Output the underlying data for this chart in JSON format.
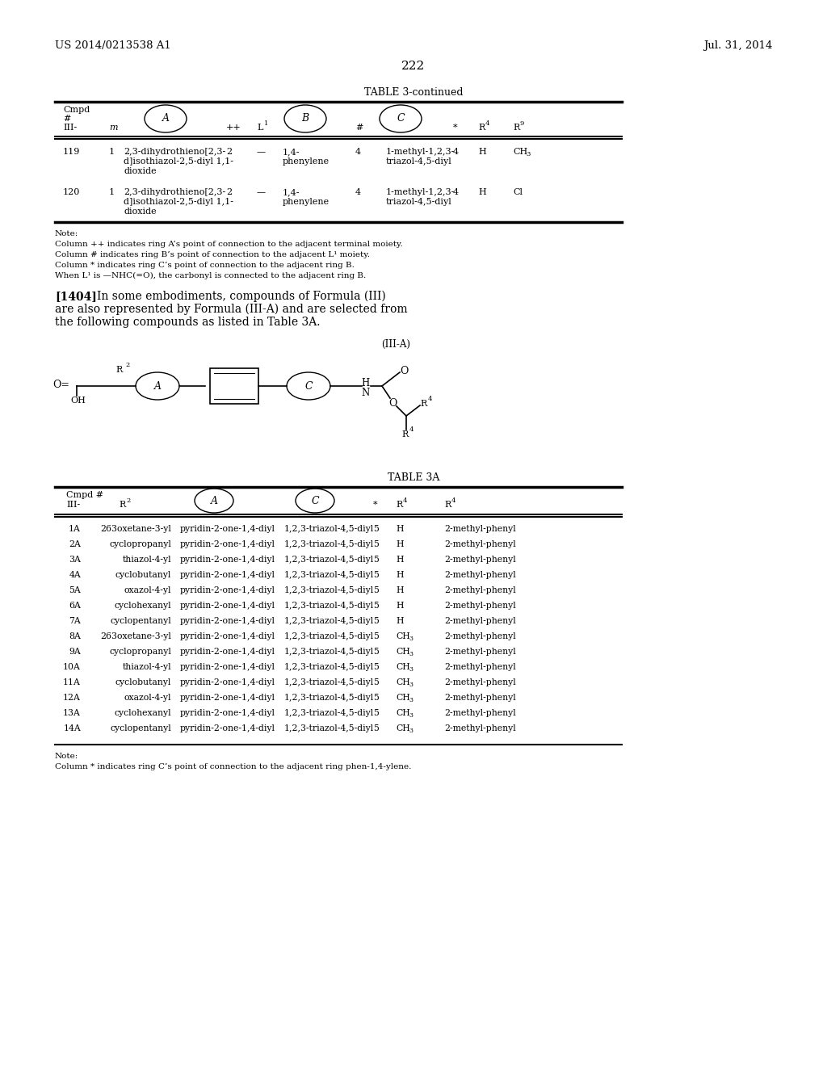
{
  "bg_color": "#ffffff",
  "patent_left": "US 2014/0213538 A1",
  "patent_right": "Jul. 31, 2014",
  "page_number": "222",
  "table3_continued_title": "TABLE 3-continued",
  "table3_notes": [
    "Note:",
    "Column ++ indicates ring A’s point of connection to the adjacent terminal moiety.",
    "Column # indicates ring B’s point of connection to the adjacent L¹ moiety.",
    "Column * indicates ring C’s point of connection to the adjacent ring B.",
    "When L¹ is —NHC(=O), the carbonyl is connected to the adjacent ring B."
  ],
  "para_1404_bold": "[1404]",
  "para_1404_text": "  In some embodiments, compounds of Formula (III)\nare also represented by Formula (III-A) and are selected from\nthe following compounds as listed in Table 3A.",
  "formula_label": "(III-A)",
  "table3a_title": "TABLE 3A",
  "table3a_rows": [
    [
      "1A",
      "263oxetane-3-yl",
      "pyridin-2-one-1,4-diyl",
      "1,2,3-triazol-4,5-diyl",
      "5",
      "H",
      "2-methyl-phenyl"
    ],
    [
      "2A",
      "cyclopropanyl",
      "pyridin-2-one-1,4-diyl",
      "1,2,3-triazol-4,5-diyl",
      "5",
      "H",
      "2-methyl-phenyl"
    ],
    [
      "3A",
      "thiazol-4-yl",
      "pyridin-2-one-1,4-diyl",
      "1,2,3-triazol-4,5-diyl",
      "5",
      "H",
      "2-methyl-phenyl"
    ],
    [
      "4A",
      "cyclobutanyl",
      "pyridin-2-one-1,4-diyl",
      "1,2,3-triazol-4,5-diyl",
      "5",
      "H",
      "2-methyl-phenyl"
    ],
    [
      "5A",
      "oxazol-4-yl",
      "pyridin-2-one-1,4-diyl",
      "1,2,3-triazol-4,5-diyl",
      "5",
      "H",
      "2-methyl-phenyl"
    ],
    [
      "6A",
      "cyclohexanyl",
      "pyridin-2-one-1,4-diyl",
      "1,2,3-triazol-4,5-diyl",
      "5",
      "H",
      "2-methyl-phenyl"
    ],
    [
      "7A",
      "cyclopentanyl",
      "pyridin-2-one-1,4-diyl",
      "1,2,3-triazol-4,5-diyl",
      "5",
      "H",
      "2-methyl-phenyl"
    ],
    [
      "8A",
      "263oxetane-3-yl",
      "pyridin-2-one-1,4-diyl",
      "1,2,3-triazol-4,5-diyl",
      "5",
      "CH3",
      "2-methyl-phenyl"
    ],
    [
      "9A",
      "cyclopropanyl",
      "pyridin-2-one-1,4-diyl",
      "1,2,3-triazol-4,5-diyl",
      "5",
      "CH3",
      "2-methyl-phenyl"
    ],
    [
      "10A",
      "thiazol-4-yl",
      "pyridin-2-one-1,4-diyl",
      "1,2,3-triazol-4,5-diyl",
      "5",
      "CH3",
      "2-methyl-phenyl"
    ],
    [
      "11A",
      "cyclobutanyl",
      "pyridin-2-one-1,4-diyl",
      "1,2,3-triazol-4,5-diyl",
      "5",
      "CH3",
      "2-methyl-phenyl"
    ],
    [
      "12A",
      "oxazol-4-yl",
      "pyridin-2-one-1,4-diyl",
      "1,2,3-triazol-4,5-diyl",
      "5",
      "CH3",
      "2-methyl-phenyl"
    ],
    [
      "13A",
      "cyclohexanyl",
      "pyridin-2-one-1,4-diyl",
      "1,2,3-triazol-4,5-diyl",
      "5",
      "CH3",
      "2-methyl-phenyl"
    ],
    [
      "14A",
      "cyclopentanyl",
      "pyridin-2-one-1,4-diyl",
      "1,2,3-triazol-4,5-diyl",
      "5",
      "CH3",
      "2-methyl-phenyl"
    ]
  ],
  "table3a_note_line1": "Note:",
  "table3a_note_line2": "Column * indicates ring C’s point of connection to the adjacent ring phen-1,4-ylene."
}
